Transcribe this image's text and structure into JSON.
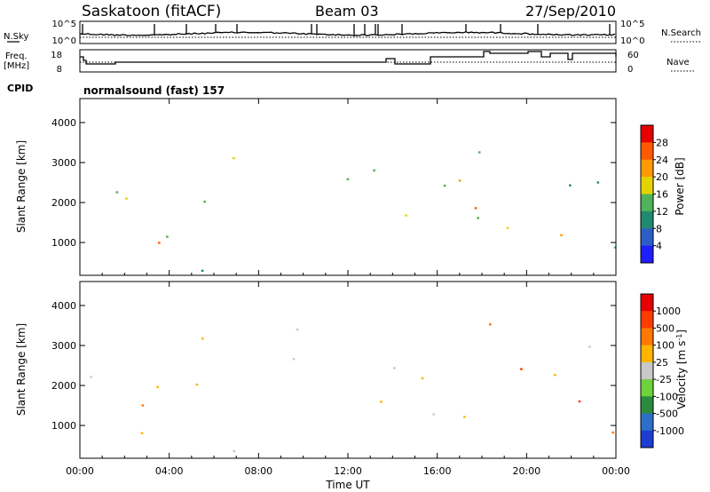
{
  "header": {
    "station": "Saskatoon (fitACF)",
    "beam": "Beam 03",
    "date": "27/Sep/2010"
  },
  "strip": {
    "nsky_label": "N.Sky",
    "nsearch_label": "N.Search",
    "freq_label": "Freq.",
    "freq_unit": "[MHz]",
    "nave_label": "Nave",
    "cpid_label": "CPID",
    "cpid_value": "normalsound (fast) 157",
    "noise_tick_top": "10^5",
    "noise_tick_bottom": "10^0",
    "freq_ticks": [
      "18",
      "8"
    ],
    "nave_ticks": [
      "60",
      "0"
    ]
  },
  "chart_data": [
    {
      "type": "heatmap",
      "name": "power",
      "ylabel": "Slant Range [km]",
      "ylim": [
        180,
        4600
      ],
      "yticks": [
        "1000",
        "2000",
        "3000",
        "4000"
      ],
      "colorbar_label": "Power [dB]",
      "colorbar_ticks": [
        "4",
        "8",
        "12",
        "16",
        "20",
        "24",
        "28"
      ],
      "colors": [
        "#1e1eff",
        "#2d5ec8",
        "#1f8a6e",
        "#4fb35a",
        "#e3d400",
        "#ff9a00",
        "#ff5a00",
        "#e60000"
      ]
    },
    {
      "type": "heatmap",
      "name": "velocity",
      "xlabel": "Time UT",
      "ylabel": "Slant Range [km]",
      "xlim": [
        "00:00",
        "00:00"
      ],
      "xticks": [
        "00:00",
        "04:00",
        "08:00",
        "12:00",
        "16:00",
        "20:00",
        "00:00"
      ],
      "ylim": [
        180,
        4600
      ],
      "yticks": [
        "1000",
        "2000",
        "3000",
        "4000"
      ],
      "colorbar_label": "Velocity [m s",
      "colorbar_unit_sup": "-1",
      "colorbar_unit_end": "]",
      "colorbar_ticks": [
        "1000",
        "500",
        "100",
        "25",
        "-25",
        "-100",
        "-500",
        "-1000"
      ],
      "colors": [
        "#1e3cd2",
        "#2d6ec8",
        "#2a8a3e",
        "#6ed23c",
        "#c8c8c8",
        "#ffb400",
        "#ff7800",
        "#ff3c00",
        "#e60000"
      ]
    }
  ]
}
